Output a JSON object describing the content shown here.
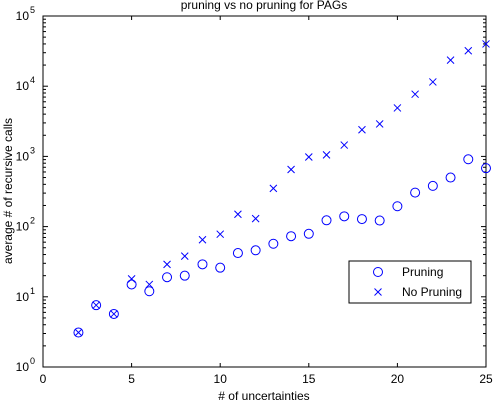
{
  "chart_data": {
    "type": "scatter",
    "title": "pruning vs no pruning for PAGs",
    "xlabel": "# of uncertainties",
    "ylabel": "average # of recursive calls",
    "xlim": [
      0,
      25
    ],
    "ylim": [
      1,
      100000
    ],
    "yscale": "log",
    "xticks": [
      0,
      5,
      10,
      15,
      20,
      25
    ],
    "yticks": [
      {
        "base": "10",
        "exp": "0",
        "value": 1
      },
      {
        "base": "10",
        "exp": "1",
        "value": 10
      },
      {
        "base": "10",
        "exp": "2",
        "value": 100
      },
      {
        "base": "10",
        "exp": "3",
        "value": 1000
      },
      {
        "base": "10",
        "exp": "4",
        "value": 10000
      },
      {
        "base": "10",
        "exp": "5",
        "value": 100000
      }
    ],
    "grid": false,
    "legend_position": "lower-right",
    "color": "#0000ff",
    "series": [
      {
        "name": "Pruning",
        "marker": "circle",
        "x": [
          2,
          3,
          4,
          5,
          6,
          7,
          8,
          9,
          10,
          11,
          12,
          13,
          14,
          15,
          16,
          17,
          18,
          19,
          20,
          21,
          22,
          23,
          24,
          25
        ],
        "y": [
          3.1,
          7.6,
          5.7,
          15,
          12,
          19,
          20,
          29,
          26,
          42,
          46,
          57,
          73,
          79,
          123,
          140,
          128,
          122,
          195,
          305,
          380,
          500,
          910,
          680
        ]
      },
      {
        "name": "No Pruning",
        "marker": "x",
        "x": [
          2,
          3,
          4,
          5,
          6,
          7,
          8,
          9,
          10,
          11,
          12,
          13,
          14,
          15,
          16,
          17,
          18,
          19,
          20,
          21,
          22,
          23,
          24,
          25
        ],
        "y": [
          3.1,
          7.6,
          5.7,
          18,
          15,
          29,
          38,
          65,
          78,
          150,
          130,
          350,
          650,
          980,
          1050,
          1450,
          2400,
          2900,
          4900,
          7700,
          11500,
          23500,
          32000,
          40000
        ]
      }
    ]
  }
}
